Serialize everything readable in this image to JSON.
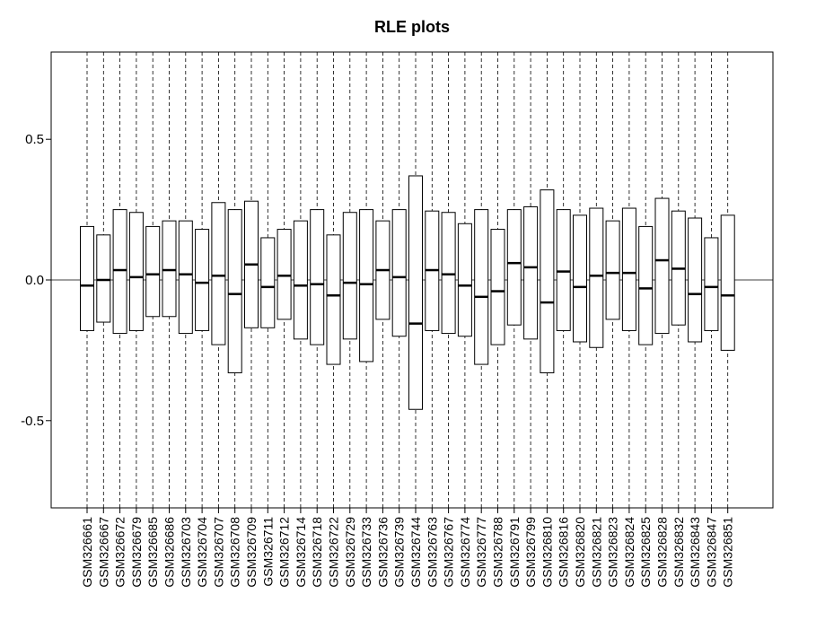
{
  "chart_data": {
    "type": "box",
    "title": "RLE plots",
    "xlabel": "",
    "ylabel": "",
    "ylim": [
      -0.81,
      0.81
    ],
    "yticks": [
      -0.5,
      0.0,
      0.5
    ],
    "ytick_labels": [
      "-0.5",
      "0.0",
      "0.5"
    ],
    "reference_line": 0.0,
    "grid": false,
    "categories": [
      "GSM326661",
      "GSM326667",
      "GSM326672",
      "GSM326679",
      "GSM326685",
      "GSM326686",
      "GSM326703",
      "GSM326704",
      "GSM326707",
      "GSM326708",
      "GSM326709",
      "GSM326711",
      "GSM326712",
      "GSM326714",
      "GSM326718",
      "GSM326722",
      "GSM326729",
      "GSM326733",
      "GSM326736",
      "GSM326739",
      "GSM326744",
      "GSM326763",
      "GSM326767",
      "GSM326774",
      "GSM326777",
      "GSM326788",
      "GSM326791",
      "GSM326799",
      "GSM326810",
      "GSM326816",
      "GSM326820",
      "GSM326821",
      "GSM326823",
      "GSM326824",
      "GSM326825",
      "GSM326828",
      "GSM326832",
      "GSM326843",
      "GSM326847",
      "GSM326851"
    ],
    "q1": [
      -0.18,
      -0.15,
      -0.19,
      -0.18,
      -0.13,
      -0.13,
      -0.19,
      -0.18,
      -0.23,
      -0.33,
      -0.17,
      -0.17,
      -0.14,
      -0.21,
      -0.23,
      -0.3,
      -0.21,
      -0.29,
      -0.14,
      -0.2,
      -0.46,
      -0.18,
      -0.19,
      -0.2,
      -0.3,
      -0.23,
      -0.16,
      -0.21,
      -0.33,
      -0.18,
      -0.22,
      -0.24,
      -0.14,
      -0.18,
      -0.23,
      -0.19,
      -0.16,
      -0.22,
      -0.18,
      -0.25
    ],
    "median": [
      -0.02,
      0.0,
      0.035,
      0.01,
      0.02,
      0.035,
      0.02,
      -0.01,
      0.015,
      -0.05,
      0.055,
      -0.025,
      0.015,
      -0.02,
      -0.015,
      -0.055,
      -0.01,
      -0.015,
      0.035,
      0.01,
      -0.155,
      0.035,
      0.02,
      -0.02,
      -0.06,
      -0.04,
      0.06,
      0.045,
      -0.08,
      0.03,
      -0.025,
      0.015,
      0.025,
      0.025,
      -0.03,
      0.07,
      0.04,
      -0.05,
      -0.025,
      -0.055
    ],
    "q3": [
      0.19,
      0.16,
      0.25,
      0.24,
      0.19,
      0.21,
      0.21,
      0.18,
      0.275,
      0.25,
      0.28,
      0.15,
      0.18,
      0.21,
      0.25,
      0.16,
      0.24,
      0.25,
      0.21,
      0.25,
      0.37,
      0.245,
      0.24,
      0.2,
      0.25,
      0.18,
      0.25,
      0.26,
      0.32,
      0.25,
      0.23,
      0.255,
      0.21,
      0.255,
      0.19,
      0.29,
      0.245,
      0.22,
      0.15,
      0.23
    ],
    "whisker_style": "dashed"
  }
}
